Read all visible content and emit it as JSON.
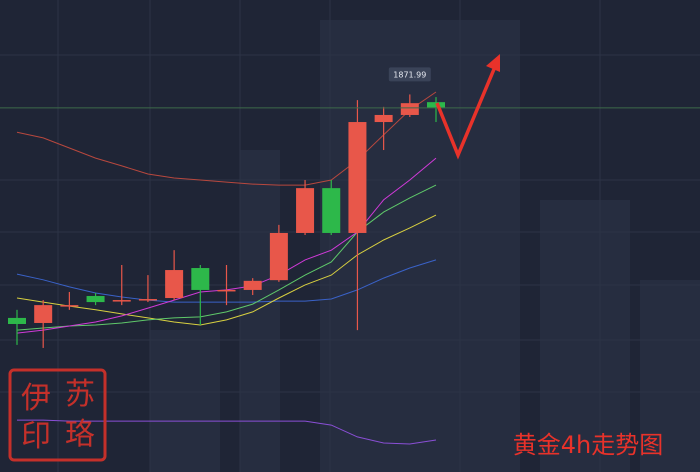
{
  "chart_data": {
    "type": "candlestick",
    "title": "黄金4h走势图",
    "watermark": [
      "伊",
      "苏",
      "印",
      "珞"
    ],
    "categories": [
      null,
      null,
      null,
      null,
      null,
      null,
      null,
      null,
      null,
      null,
      null,
      null,
      null,
      null,
      null,
      null,
      null
    ],
    "open": [
      1805.7,
      1804.2,
      1809.2,
      1812.2,
      1810.7,
      1811.0,
      1811.6,
      1820.5,
      1814.0,
      1814.0,
      1816.9,
      1830.9,
      1844.2,
      1830.9,
      1863.8,
      1865.9,
      1869.7
    ],
    "high": [
      1808.1,
      1811.0,
      1813.4,
      1813.1,
      1821.4,
      1818.4,
      1825.8,
      1821.4,
      1821.4,
      1817.5,
      1833.3,
      1846.6,
      1846.6,
      1870.3,
      1868.3,
      1871.99,
      1871.2
    ],
    "low": [
      1797.7,
      1796.8,
      1808.1,
      1809.5,
      1809.5,
      1810.4,
      1811.0,
      1803.6,
      1809.5,
      1812.5,
      1816.4,
      1830.3,
      1830.3,
      1802.1,
      1855.5,
      1865.3,
      1863.8
    ],
    "close": [
      1803.9,
      1809.5,
      1809.5,
      1810.4,
      1811.0,
      1811.3,
      1819.9,
      1814.0,
      1814.0,
      1816.7,
      1830.9,
      1844.2,
      1830.9,
      1863.8,
      1865.9,
      1869.4,
      1868.0
    ],
    "up_color": "#e8574a",
    "down_color": "#2db84a",
    "series": [
      {
        "color": "#b8483e",
        "values": [
          1860.8,
          1859.1,
          1856.1,
          1853.1,
          1850.8,
          1848.4,
          1847.2,
          1846.6,
          1846.0,
          1845.4,
          1845.1,
          1845.1,
          1846.6,
          1852.5,
          1860.0,
          1867.4,
          1872.7
        ]
      },
      {
        "color": "#3a62c8",
        "values": [
          1818.7,
          1817.0,
          1814.9,
          1813.1,
          1811.9,
          1811.0,
          1810.4,
          1810.4,
          1810.4,
          1810.4,
          1810.7,
          1810.7,
          1811.3,
          1814.0,
          1817.5,
          1820.5,
          1822.9
        ]
      },
      {
        "color": "#d8d040",
        "values": [
          1811.6,
          1810.4,
          1809.2,
          1808.1,
          1806.9,
          1805.7,
          1804.5,
          1803.6,
          1805.1,
          1807.5,
          1811.6,
          1815.5,
          1818.4,
          1824.4,
          1828.8,
          1832.4,
          1836.2
        ]
      },
      {
        "color": "#5fc96a",
        "values": [
          1802.1,
          1802.7,
          1803.3,
          1803.6,
          1804.2,
          1805.1,
          1805.7,
          1806.0,
          1807.5,
          1809.8,
          1814.0,
          1818.4,
          1822.3,
          1831.2,
          1837.1,
          1841.3,
          1845.1
        ]
      },
      {
        "color": "#d03ad8",
        "values": [
          1801.2,
          1802.1,
          1803.3,
          1804.5,
          1806.3,
          1808.6,
          1811.0,
          1813.4,
          1814.0,
          1815.2,
          1818.4,
          1822.9,
          1825.8,
          1831.2,
          1840.7,
          1846.6,
          1853.1
        ]
      },
      {
        "color": "#8a4fd6",
        "values": [
          1775.4,
          1775.4,
          1775.1,
          1775.1,
          1775.1,
          1775.1,
          1775.1,
          1775.1,
          1775.1,
          1775.1,
          1775.1,
          1775.1,
          1773.9,
          1770.4,
          1768.6,
          1768.3,
          1769.5
        ]
      }
    ],
    "ylim": [
      1760,
      1900
    ]
  }
}
